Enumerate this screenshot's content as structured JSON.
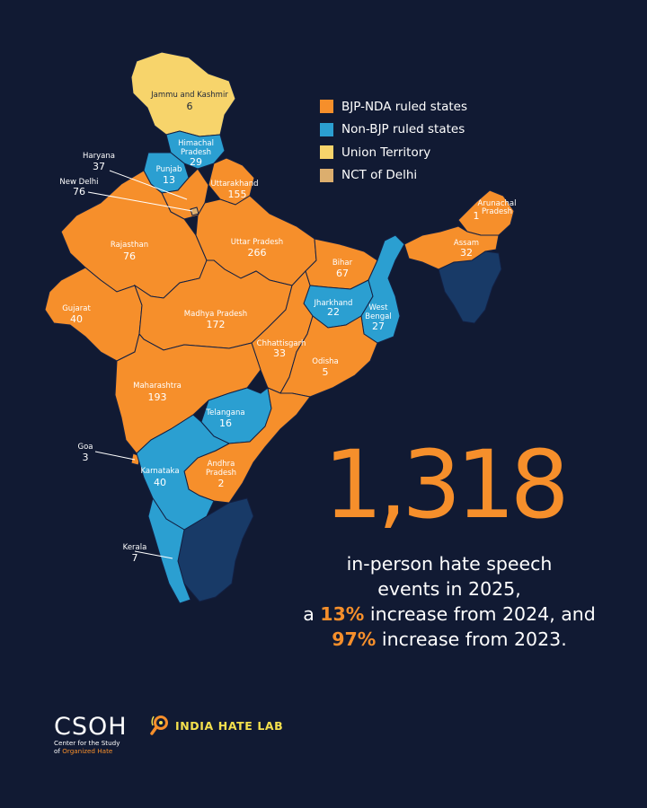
{
  "legend": {
    "bjp": {
      "label": "BJP-NDA ruled states",
      "color": "#f68f2b"
    },
    "nonbjp": {
      "label": "Non-BJP ruled states",
      "color": "#2b9fd1"
    },
    "ut": {
      "label": "Union Territory",
      "color": "#f7d46b"
    },
    "nct": {
      "label": "NCT of Delhi",
      "color": "#dcae6e"
    }
  },
  "regions": {
    "jk": {
      "name": "Jammu and Kashmir",
      "count": "6"
    },
    "himachal": {
      "name": "Himachal Pradesh",
      "count": "29"
    },
    "punjab": {
      "name": "Punjab",
      "count": "13"
    },
    "haryana": {
      "name": "Haryana",
      "count": "37"
    },
    "delhi": {
      "name": "New Delhi",
      "count": "76"
    },
    "uttarakhand": {
      "name": "Uttarakhand",
      "count": "155"
    },
    "rajasthan": {
      "name": "Rajasthan",
      "count": "76"
    },
    "up": {
      "name": "Uttar Pradesh",
      "count": "266"
    },
    "bihar": {
      "name": "Bihar",
      "count": "67"
    },
    "gujarat": {
      "name": "Gujarat",
      "count": "40"
    },
    "mp": {
      "name": "Madhya Pradesh",
      "count": "172"
    },
    "jharkhand": {
      "name": "Jharkhand",
      "count": "22"
    },
    "wb": {
      "name": "West Bengal",
      "count": "27"
    },
    "chhattisgarh": {
      "name": "Chhattisgarh",
      "count": "33"
    },
    "odisha": {
      "name": "Odisha",
      "count": "5"
    },
    "maharashtra": {
      "name": "Maharashtra",
      "count": "193"
    },
    "telangana": {
      "name": "Telangana",
      "count": "16"
    },
    "goa": {
      "name": "Goa",
      "count": "3"
    },
    "karnataka": {
      "name": "Karnataka",
      "count": "40"
    },
    "ap": {
      "name": "Andhra Pradesh",
      "count": "2"
    },
    "kerala": {
      "name": "Kerala",
      "count": "7"
    },
    "arunachal": {
      "name": "Arunachal Pradesh",
      "count": "1"
    },
    "assam": {
      "name": "Assam",
      "count": "32"
    }
  },
  "headline": {
    "total": "1,318",
    "line1": "in-person hate speech",
    "line2": "events in 2025,",
    "line3_pre": "a ",
    "line3_hl": "13%",
    "line3_post": " increase from 2024, and",
    "line4_hl": "97%",
    "line4_post": " increase from 2023."
  },
  "footer": {
    "csoh_logo": "CSOH",
    "csoh_line1": "Center for the Study",
    "csoh_line2_pre": "of ",
    "csoh_line2_org": "Organized Hate",
    "ihl": "INDIA HATE LAB"
  }
}
